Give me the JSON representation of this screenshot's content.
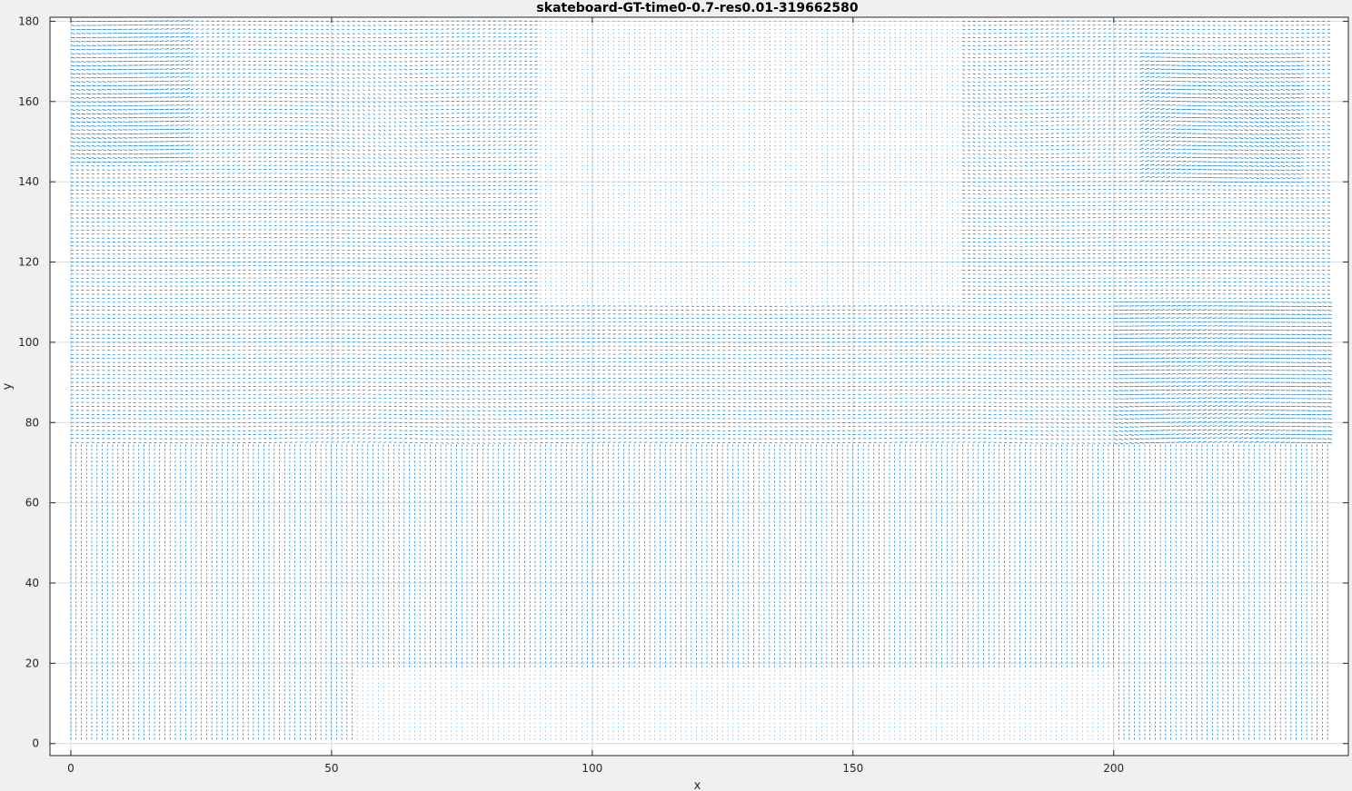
{
  "chart_data": {
    "type": "quiver",
    "title": "skateboard-GT-time0-0.7-res0.01-319662580",
    "xlabel": "x",
    "ylabel": "y",
    "xlim": [
      -4,
      245
    ],
    "ylim": [
      -3,
      181
    ],
    "x_ticks": [
      0,
      50,
      100,
      150,
      200
    ],
    "y_ticks": [
      0,
      20,
      40,
      60,
      80,
      100,
      120,
      140,
      160,
      180
    ],
    "x_tick_labels": [
      "0",
      "50",
      "100",
      "150",
      "200"
    ],
    "y_tick_labels": [
      "0",
      "20",
      "40",
      "60",
      "80",
      "100",
      "120",
      "140",
      "160",
      "180"
    ],
    "grid": true,
    "legend": "none",
    "field_extent": {
      "x": [
        0,
        241
      ],
      "y": [
        1,
        180
      ]
    },
    "field_sampling": {
      "dx": 1,
      "dy": 1
    },
    "series": [
      {
        "color": "#0072bd"
      }
    ],
    "dense_regions": [
      {
        "x": [
          0,
          22
        ],
        "y": [
          145,
          180
        ]
      },
      {
        "x": [
          205,
          235
        ],
        "y": [
          140,
          172
        ]
      },
      {
        "x": [
          200,
          241
        ],
        "y": [
          75,
          110
        ]
      }
    ],
    "sparse_regions": [
      {
        "x": [
          90,
          170
        ],
        "y": [
          110,
          180
        ]
      },
      {
        "x": [
          55,
          200
        ],
        "y": [
          0,
          18
        ]
      }
    ]
  }
}
